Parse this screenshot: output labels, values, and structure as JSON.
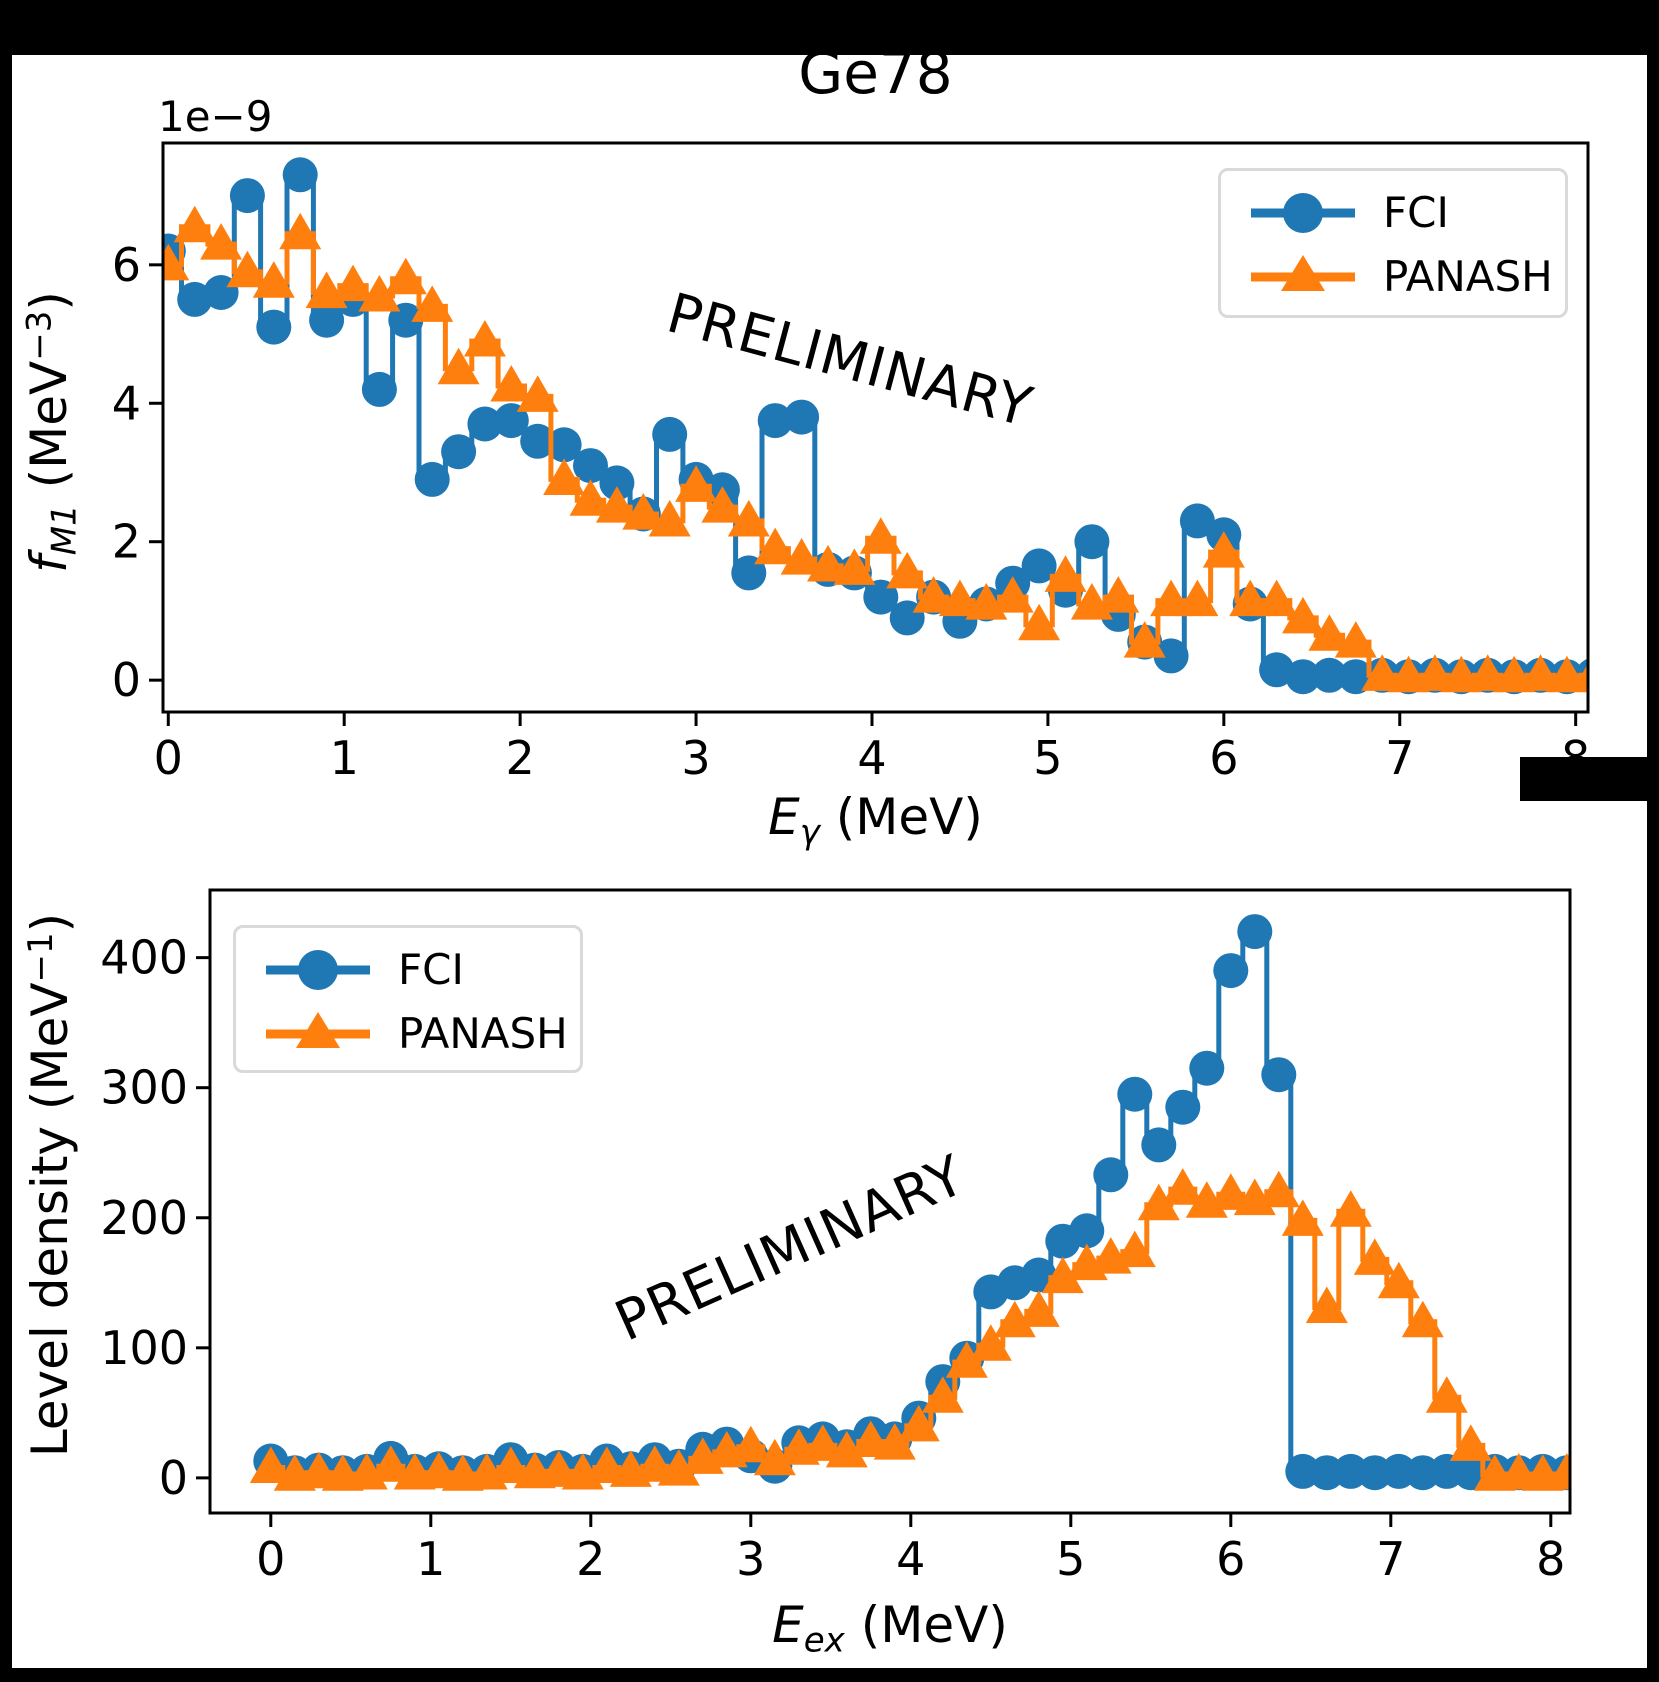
{
  "title": "Ge78",
  "watermark_text": "PRELIMINARY",
  "colors": {
    "fci": "#1f77b4",
    "panash": "#ff7f0e",
    "text": "#000000",
    "legend_edge": "#d9d9d9",
    "background": "#000000",
    "axes_bg": "#ffffff"
  },
  "legend": {
    "fci_label": "FCI",
    "panash_label": "PANASH"
  },
  "labels": {
    "top_y": {
      "lead": "f",
      "sub": "M1",
      "mid": " (MeV",
      "sup": "−3",
      "tail": ")"
    },
    "top_x": {
      "lead": "E",
      "sub": "γ",
      "mid": " (MeV)",
      "sup": "",
      "tail": ""
    },
    "bottom_y": {
      "lead": "",
      "sub": "",
      "mid": "Level density (MeV",
      "sup": "−1",
      "tail": ")"
    },
    "bottom_x": {
      "lead": "E",
      "sub": "ex",
      "mid": " (MeV)",
      "sup": "",
      "tail": ""
    }
  },
  "top_offset_text": "1e−9",
  "chart_data": [
    {
      "id": "gsf",
      "type": "line",
      "drawstyle": "steps-mid",
      "title": "Ge78",
      "xlabel": "E_gamma (MeV)",
      "ylabel": "f_M1 (MeV^-3)",
      "y_scale_factor": 1e-09,
      "xlim": [
        -0.03,
        8.07
      ],
      "ylim": [
        -0.46,
        7.76
      ],
      "xticks": [
        0,
        1,
        2,
        3,
        4,
        5,
        6,
        7,
        8
      ],
      "yticks": [
        0,
        2,
        4,
        6
      ],
      "legend_position": "upper right",
      "grid": false,
      "x": [
        0,
        0.15,
        0.3,
        0.45,
        0.6,
        0.75,
        0.9,
        1.05,
        1.2,
        1.35,
        1.5,
        1.65,
        1.8,
        1.95,
        2.1,
        2.25,
        2.4,
        2.55,
        2.7,
        2.85,
        3.0,
        3.15,
        3.3,
        3.45,
        3.6,
        3.75,
        3.9,
        4.05,
        4.2,
        4.35,
        4.5,
        4.65,
        4.8,
        4.95,
        5.1,
        5.25,
        5.4,
        5.55,
        5.7,
        5.85,
        6.0,
        6.15,
        6.3,
        6.45,
        6.6,
        6.75,
        6.9,
        7.05,
        7.2,
        7.35,
        7.5,
        7.65,
        7.8,
        7.95,
        8.1
      ],
      "series": [
        {
          "name": "FCI",
          "marker": "circle",
          "color": "#1f77b4",
          "values": [
            6.2,
            5.5,
            5.6,
            7.0,
            5.1,
            7.3,
            5.2,
            5.5,
            4.2,
            5.2,
            2.9,
            3.3,
            3.7,
            3.75,
            3.45,
            3.4,
            3.1,
            2.85,
            2.4,
            3.55,
            2.9,
            2.75,
            1.55,
            3.75,
            3.8,
            1.6,
            1.55,
            1.2,
            0.9,
            1.2,
            0.85,
            1.1,
            1.4,
            1.65,
            1.3,
            2.0,
            0.95,
            0.55,
            0.35,
            2.3,
            2.1,
            1.1,
            0.15,
            0.05,
            0.07,
            0.05,
            0.07,
            0.05,
            0.07,
            0.05,
            0.07,
            0.05,
            0.07,
            0.05,
            0.07
          ]
        },
        {
          "name": "PANASH",
          "marker": "triangle-up",
          "color": "#ff7f0e",
          "values": [
            6.0,
            6.55,
            6.3,
            5.9,
            5.75,
            6.45,
            5.6,
            5.7,
            5.55,
            5.8,
            5.4,
            4.5,
            4.9,
            4.25,
            4.1,
            2.9,
            2.6,
            2.5,
            2.4,
            2.3,
            2.8,
            2.5,
            2.3,
            1.9,
            1.75,
            1.65,
            1.6,
            2.05,
            1.55,
            1.2,
            1.15,
            1.1,
            1.2,
            0.8,
            1.5,
            1.1,
            1.2,
            0.55,
            1.15,
            1.15,
            1.85,
            1.15,
            1.15,
            0.9,
            0.65,
            0.55,
            0.07,
            0.05,
            0.07,
            0.05,
            0.07,
            0.05,
            0.07,
            0.05,
            0.07
          ]
        }
      ]
    },
    {
      "id": "nld",
      "type": "line",
      "drawstyle": "steps-mid",
      "title": "",
      "xlabel": "E_ex (MeV)",
      "ylabel": "Level density (MeV^-1)",
      "y_scale_factor": 1,
      "xlim": [
        -0.38,
        8.12
      ],
      "ylim": [
        -27,
        452
      ],
      "xticks": [
        0,
        1,
        2,
        3,
        4,
        5,
        6,
        7,
        8
      ],
      "yticks": [
        0,
        100,
        200,
        300,
        400
      ],
      "legend_position": "upper left",
      "grid": false,
      "x": [
        0,
        0.15,
        0.3,
        0.45,
        0.6,
        0.75,
        0.9,
        1.05,
        1.2,
        1.35,
        1.5,
        1.65,
        1.8,
        1.95,
        2.1,
        2.25,
        2.4,
        2.55,
        2.7,
        2.85,
        3.0,
        3.15,
        3.3,
        3.45,
        3.6,
        3.75,
        3.9,
        4.05,
        4.2,
        4.35,
        4.5,
        4.65,
        4.8,
        4.95,
        5.1,
        5.25,
        5.4,
        5.55,
        5.7,
        5.85,
        6.0,
        6.15,
        6.3,
        6.45,
        6.6,
        6.75,
        6.9,
        7.05,
        7.2,
        7.35,
        7.5,
        7.65,
        7.8,
        7.95,
        8.1
      ],
      "series": [
        {
          "name": "FCI",
          "marker": "circle",
          "color": "#1f77b4",
          "values": [
            13,
            4,
            6,
            4,
            5,
            15,
            5,
            7,
            4,
            5,
            14,
            6,
            8,
            5,
            13,
            7,
            14,
            9,
            22,
            26,
            17,
            9,
            27,
            30,
            24,
            34,
            30,
            46,
            74,
            92,
            143,
            150,
            156,
            182,
            190,
            233,
            295,
            256,
            285,
            315,
            390,
            420,
            310,
            5,
            4,
            5,
            4,
            5,
            4,
            5,
            4,
            5,
            4,
            5,
            4
          ]
        },
        {
          "name": "PANASH",
          "marker": "triangle-up",
          "color": "#ff7f0e",
          "values": [
            8,
            2,
            4,
            2,
            3,
            9,
            3,
            4,
            2,
            3,
            8,
            4,
            5,
            3,
            8,
            5,
            9,
            6,
            15,
            20,
            24,
            14,
            22,
            25,
            20,
            28,
            26,
            40,
            62,
            89,
            102,
            120,
            128,
            154,
            164,
            169,
            174,
            210,
            222,
            212,
            218,
            214,
            220,
            198,
            131,
            205,
            168,
            150,
            120,
            62,
            25,
            2,
            3,
            2,
            3
          ]
        }
      ]
    }
  ]
}
